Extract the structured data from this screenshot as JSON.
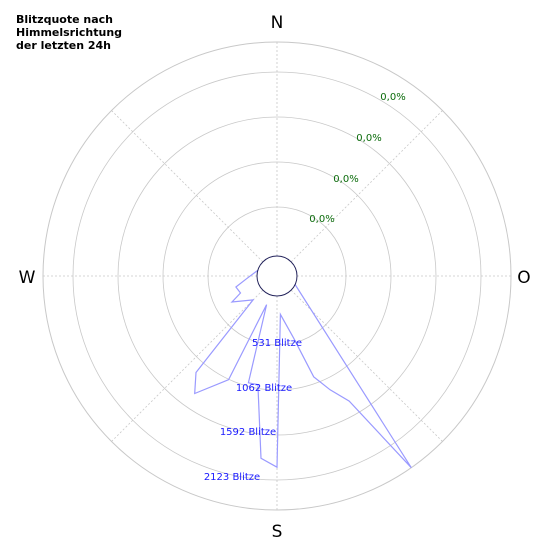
{
  "chart_data": {
    "type": "polar-radar",
    "title": "Blitzquote nach\nHimmelsrichtung\nder letzten 24h",
    "directions": {
      "north": "N",
      "east": "O",
      "south": "S",
      "west": "W"
    },
    "percent_labels": [
      "0,0%",
      "0,0%",
      "0,0%",
      "0,0%"
    ],
    "count_labels": [
      "531 Blitze",
      "1062 Blitze",
      "1592 Blitze",
      "2123 Blitze"
    ],
    "radial_max": 2654,
    "series": [
      {
        "values_by_direction": [
          {
            "angle": 0,
            "value": 0
          },
          {
            "angle": 145,
            "value": 2655
          },
          {
            "angle": 150,
            "value": 1543
          },
          {
            "angle": 155,
            "value": 1309
          },
          {
            "angle": 160,
            "value": 1082
          },
          {
            "angle": 165,
            "value": 551
          },
          {
            "angle": 175,
            "value": 230
          },
          {
            "angle": 180,
            "value": 2123
          },
          {
            "angle": 185,
            "value": 2022
          },
          {
            "angle": 190,
            "value": 1119
          },
          {
            "angle": 195,
            "value": 1123
          },
          {
            "angle": 200,
            "value": 130
          },
          {
            "angle": 205,
            "value": 1171
          },
          {
            "angle": 215,
            "value": 1531
          },
          {
            "angle": 220,
            "value": 1315
          },
          {
            "angle": 225,
            "value": 171
          },
          {
            "angle": 240,
            "value": 396
          },
          {
            "angle": 245,
            "value": 251
          },
          {
            "angle": 255,
            "value": 280
          },
          {
            "angle": 265,
            "value": 131
          },
          {
            "angle": 360,
            "value": 0
          }
        ],
        "color": "#9a9aff"
      }
    ],
    "grid_color": "#c8c8c8",
    "center_circle_color": "#22225a"
  }
}
